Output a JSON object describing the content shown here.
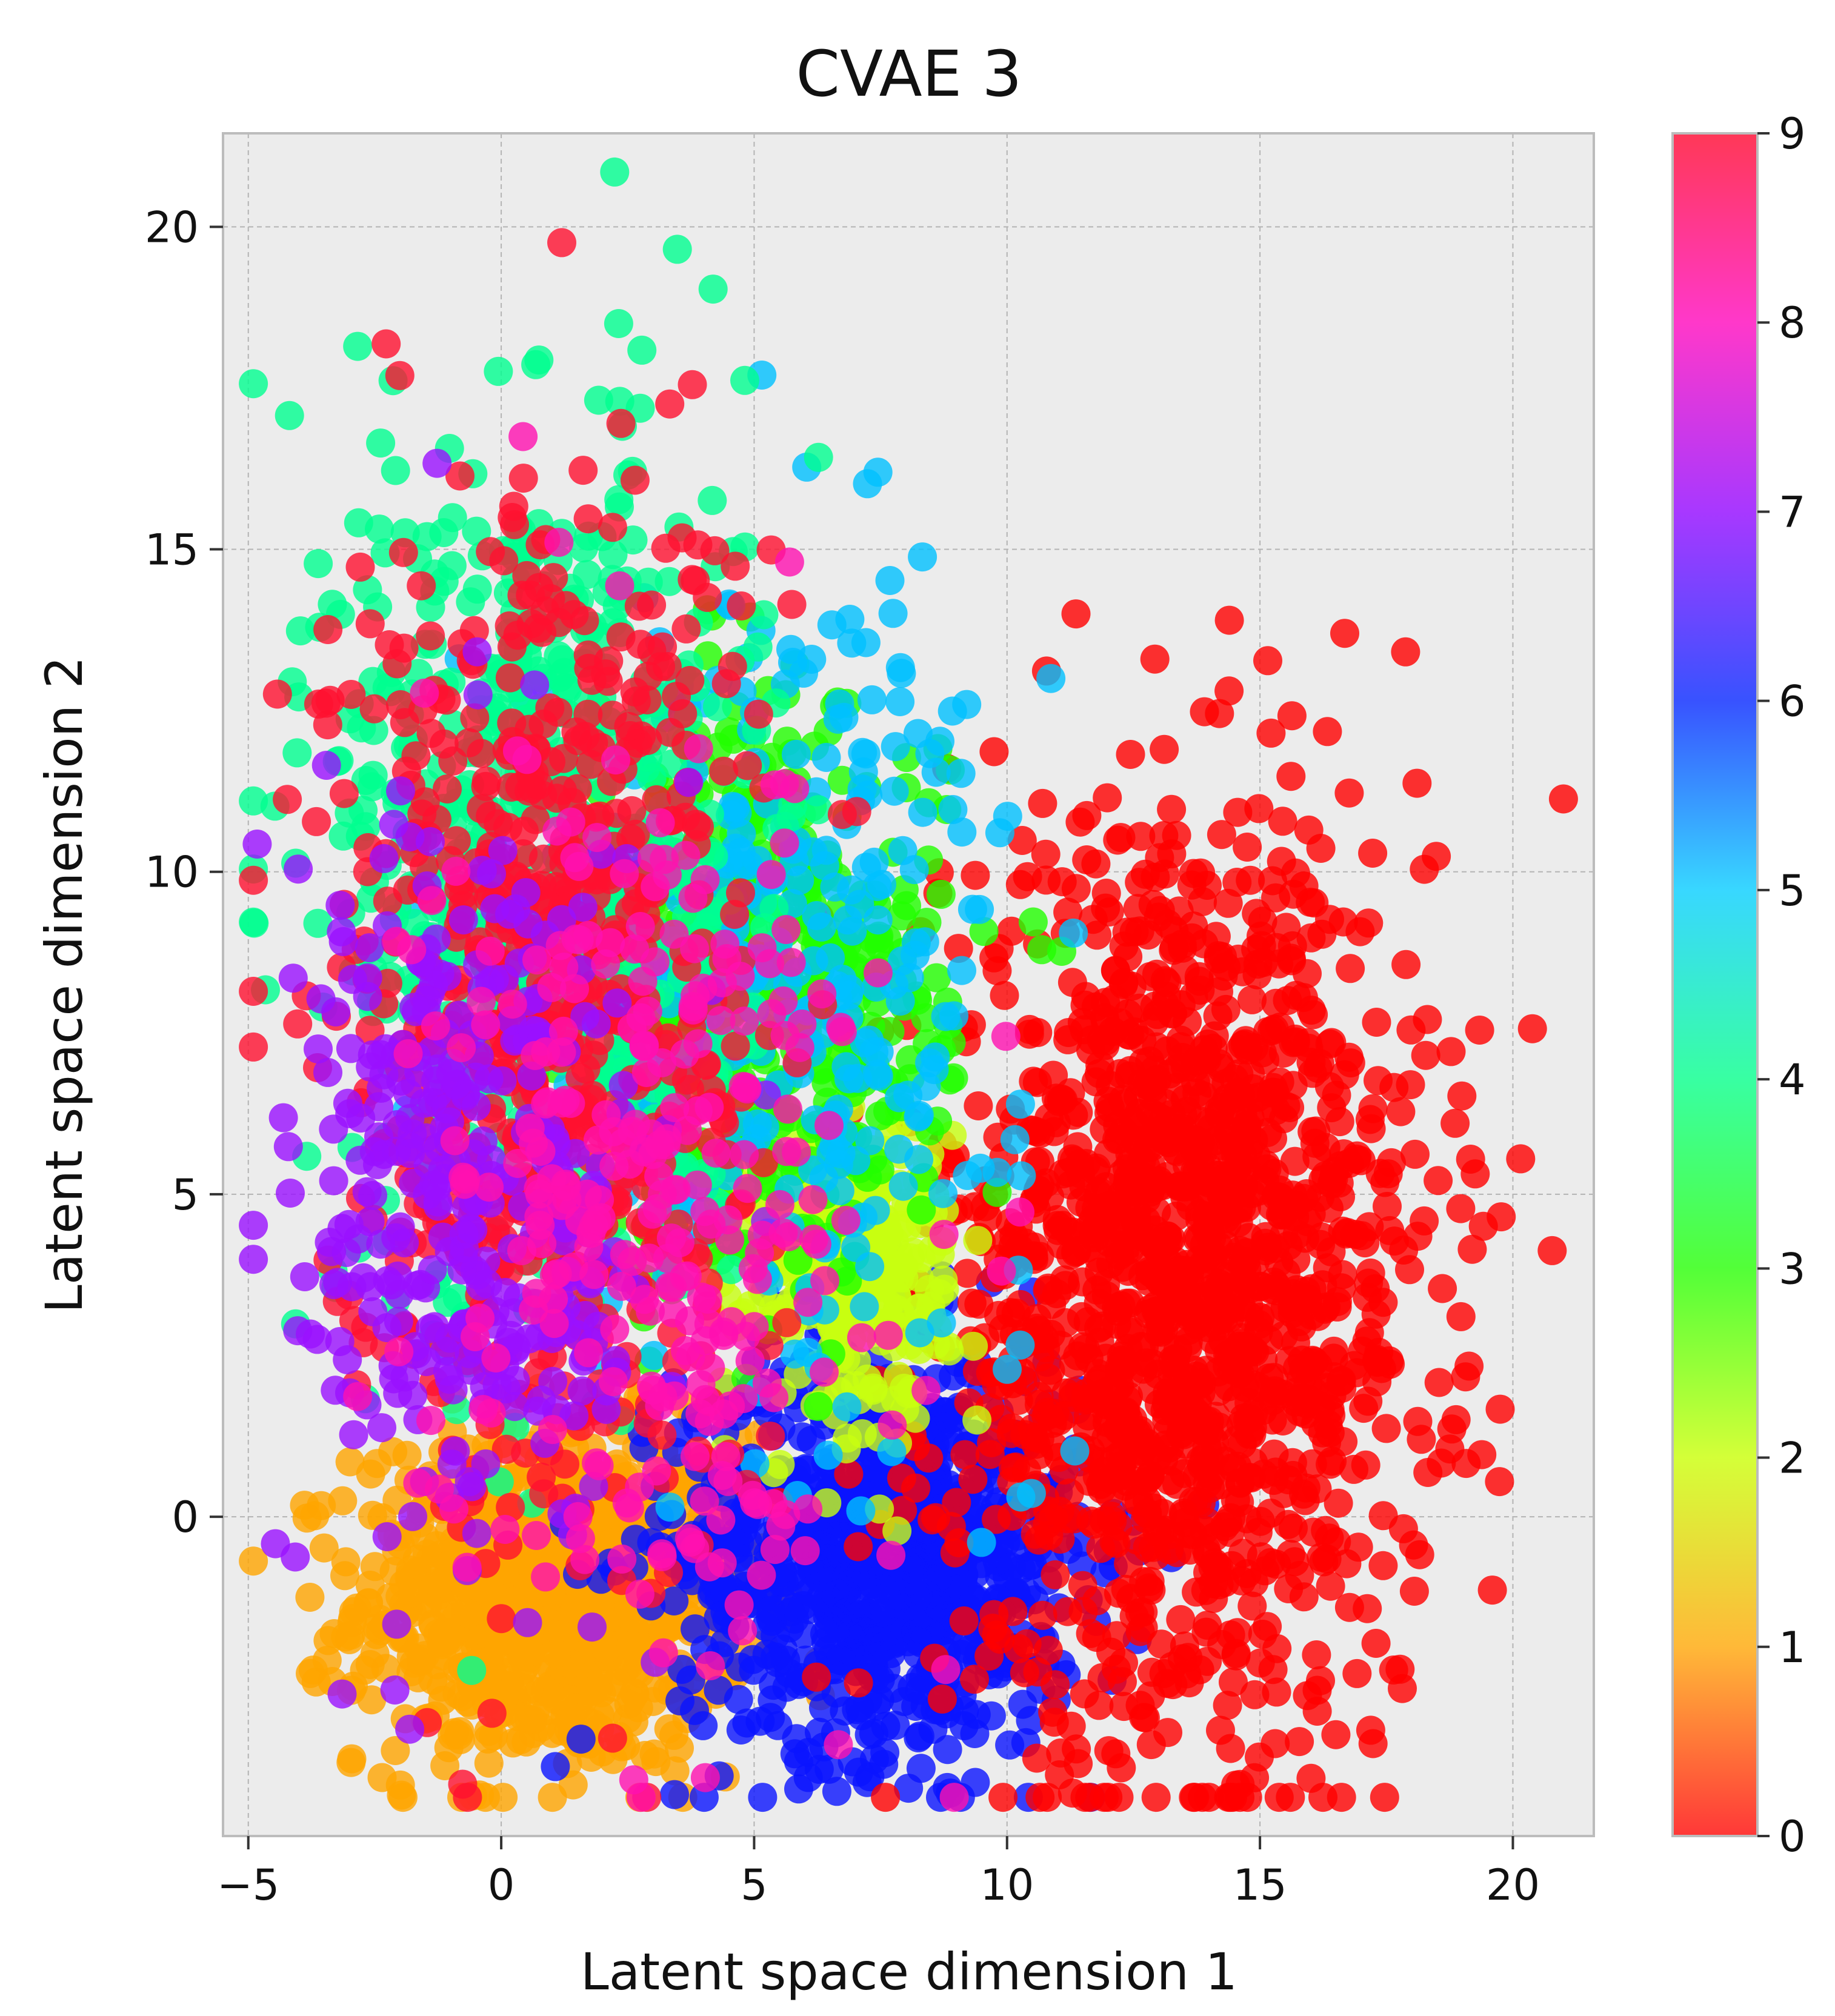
{
  "chart_data": {
    "type": "scatter",
    "title": "CVAE 3",
    "xlabel": "Latent space dimension 1",
    "ylabel": "Latent space dimension 2",
    "xlim": [
      -5.5,
      21.6
    ],
    "ylim": [
      -4.95,
      21.45
    ],
    "xticks": [
      -5,
      0,
      5,
      10,
      15,
      20
    ],
    "xtick_labels": [
      "−5",
      "0",
      "5",
      "10",
      "15",
      "20"
    ],
    "yticks": [
      0,
      5,
      10,
      15,
      20
    ],
    "ytick_labels": [
      "0",
      "5",
      "10",
      "15",
      "20"
    ],
    "grid": true,
    "background": "#ececec",
    "colorbar": {
      "colormap": "gist_rainbow_r",
      "min": 0,
      "max": 9,
      "ticks": [
        0,
        1,
        2,
        3,
        4,
        5,
        6,
        7,
        8,
        9
      ],
      "tick_labels": [
        "0",
        "1",
        "2",
        "3",
        "4",
        "5",
        "6",
        "7",
        "8",
        "9"
      ],
      "colors": [
        "#ff0000",
        "#ffa500",
        "#c8ff00",
        "#22ff00",
        "#00ff88",
        "#00ccff",
        "#0022ff",
        "#8f00ff",
        "#ff00bb",
        "#ff0028"
      ]
    },
    "clusters": [
      {
        "label": 1,
        "color": "#ffa500",
        "center": [
          1.0,
          -1.3
        ],
        "spread": [
          1.9,
          1.3
        ],
        "approx_points": 900
      },
      {
        "label": 6,
        "color": "#0a14ff",
        "center": [
          7.5,
          -0.5
        ],
        "spread": [
          2.0,
          1.6
        ],
        "approx_points": 900
      },
      {
        "label": 0,
        "color": "#ff0000",
        "center": [
          13.5,
          3.5
        ],
        "spread": [
          2.4,
          3.5
        ],
        "approx_points": 1500
      },
      {
        "label": 2,
        "color": "#c8ff10",
        "center": [
          6.8,
          4.0
        ],
        "spread": [
          1.0,
          1.2
        ],
        "approx_points": 350
      },
      {
        "label": 3,
        "color": "#22ff00",
        "center": [
          5.2,
          8.0
        ],
        "spread": [
          1.8,
          2.2
        ],
        "approx_points": 500
      },
      {
        "label": 5,
        "color": "#00c0ff",
        "center": [
          5.5,
          8.5
        ],
        "spread": [
          2.5,
          3.0
        ],
        "approx_points": 350
      },
      {
        "label": 4,
        "color": "#00ff90",
        "center": [
          0.8,
          10.0
        ],
        "spread": [
          2.0,
          3.5
        ],
        "approx_points": 700
      },
      {
        "label": 9,
        "color": "#ff1030",
        "center": [
          0.8,
          8.0
        ],
        "spread": [
          2.1,
          4.0
        ],
        "approx_points": 700
      },
      {
        "label": 7,
        "color": "#9a10ff",
        "center": [
          -0.5,
          5.0
        ],
        "spread": [
          1.8,
          3.0
        ],
        "approx_points": 350
      },
      {
        "label": 8,
        "color": "#ff10b0",
        "center": [
          3.0,
          5.0
        ],
        "spread": [
          2.2,
          3.5
        ],
        "approx_points": 300
      }
    ]
  }
}
